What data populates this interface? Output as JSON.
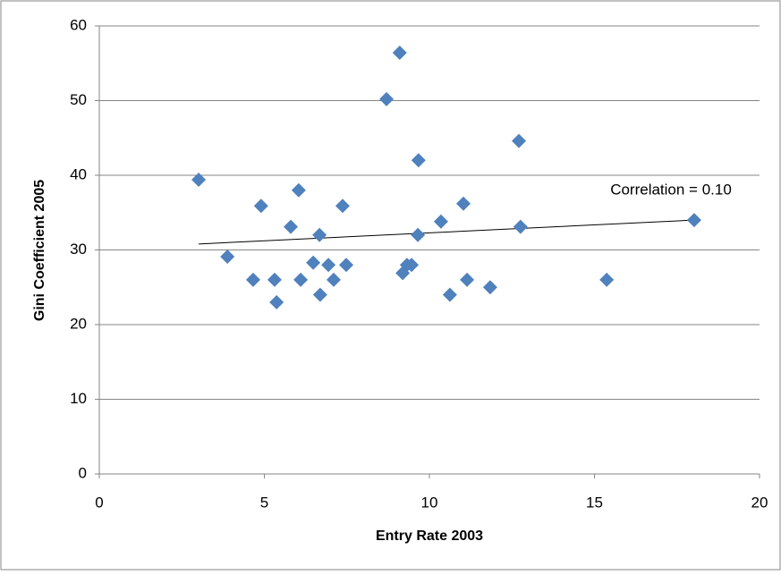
{
  "chart_data": {
    "type": "scatter",
    "xlabel": "Entry Rate 2003",
    "ylabel": "Gini Coefficient 2005",
    "annotation": "Correlation = 0.10",
    "x": [
      3.01,
      3.88,
      4.66,
      4.9,
      5.31,
      5.37,
      5.8,
      6.04,
      6.1,
      6.48,
      6.67,
      6.69,
      6.94,
      7.1,
      7.37,
      7.48,
      8.7,
      9.1,
      9.19,
      9.32,
      9.46,
      9.65,
      9.67,
      10.35,
      10.62,
      11.03,
      11.14,
      11.84,
      12.71,
      12.76,
      15.37,
      18.02
    ],
    "values": [
      39.4,
      29.1,
      26.0,
      35.9,
      26.0,
      23.0,
      33.1,
      38.0,
      26.0,
      28.3,
      32.0,
      24.0,
      28.0,
      26.0,
      35.9,
      28.0,
      50.2,
      56.4,
      26.9,
      28.0,
      28.0,
      32.0,
      42.0,
      33.8,
      24.0,
      36.2,
      26.0,
      25.0,
      44.6,
      33.1,
      26.0,
      34.0
    ],
    "color": "#4f81bd",
    "trendline": {
      "x": [
        3.01,
        18.02
      ],
      "values": [
        30.8,
        34.0
      ],
      "color": "#000000"
    },
    "xlim": [
      0,
      20
    ],
    "xticks": [
      0,
      5,
      10,
      15,
      20
    ],
    "ylim": [
      0,
      60
    ],
    "yticks": [
      0,
      10,
      20,
      30,
      40,
      50,
      60
    ],
    "grid": true
  }
}
